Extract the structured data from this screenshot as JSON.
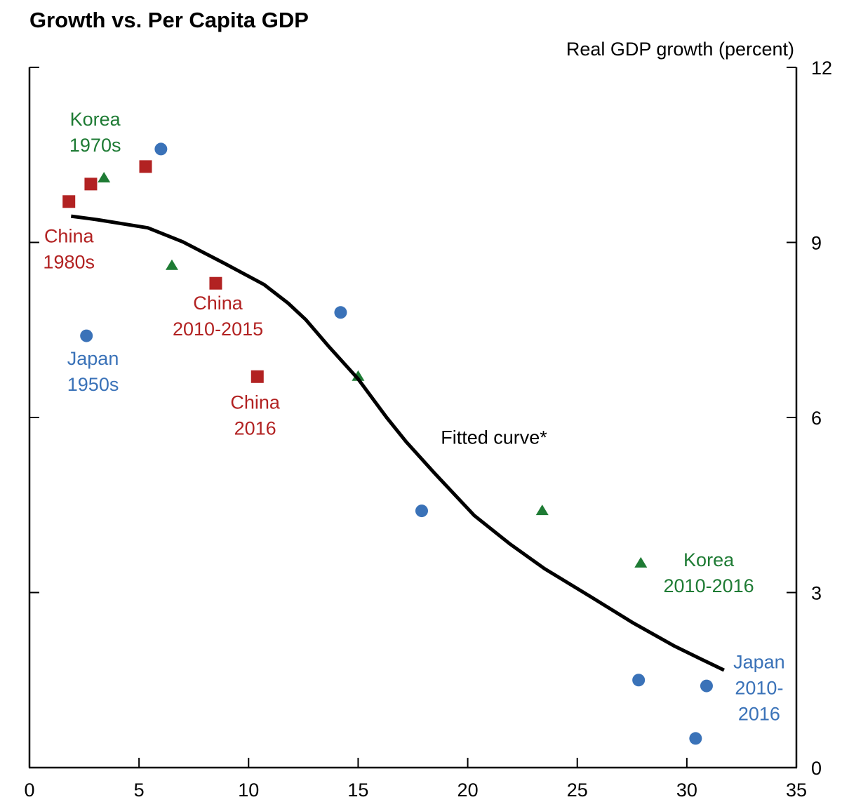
{
  "chart_data": {
    "type": "scatter",
    "title": "Growth vs. Per Capita GDP",
    "xlabel": "",
    "ylabel": "Real GDP growth (percent)",
    "y_axis_side": "right",
    "xlim": [
      0,
      35
    ],
    "ylim": [
      0,
      12
    ],
    "x_ticks": [
      "0",
      "5",
      "10",
      "15",
      "20",
      "25",
      "30",
      "35"
    ],
    "x_tick_values": [
      0,
      5,
      10,
      15,
      20,
      25,
      30,
      35
    ],
    "y_ticks": [
      "0",
      "3",
      "6",
      "9",
      "12"
    ],
    "y_tick_values": [
      0,
      3,
      6,
      9,
      12
    ],
    "grid": false,
    "series": [
      {
        "name": "China",
        "marker": "square",
        "color": "#b22222",
        "points": [
          {
            "x": 1.8,
            "y": 9.7
          },
          {
            "x": 2.8,
            "y": 10.0
          },
          {
            "x": 5.3,
            "y": 10.3
          },
          {
            "x": 8.5,
            "y": 8.3
          },
          {
            "x": 10.4,
            "y": 6.7
          }
        ]
      },
      {
        "name": "Korea",
        "marker": "triangle",
        "color": "#1e7b34",
        "points": [
          {
            "x": 3.4,
            "y": 10.1
          },
          {
            "x": 6.5,
            "y": 8.6
          },
          {
            "x": 15.0,
            "y": 6.7
          },
          {
            "x": 23.4,
            "y": 4.4
          },
          {
            "x": 27.9,
            "y": 3.5
          }
        ]
      },
      {
        "name": "Japan",
        "marker": "circle",
        "color": "#3a72b8",
        "points": [
          {
            "x": 2.6,
            "y": 7.4
          },
          {
            "x": 6.0,
            "y": 10.6
          },
          {
            "x": 14.2,
            "y": 7.8
          },
          {
            "x": 17.9,
            "y": 4.4
          },
          {
            "x": 27.8,
            "y": 1.5
          },
          {
            "x": 30.9,
            "y": 1.4
          },
          {
            "x": 30.4,
            "y": 0.5
          }
        ]
      },
      {
        "name": "Fitted curve*",
        "type": "line",
        "color": "#000000",
        "points": [
          {
            "x": 1.9,
            "y": 9.45
          },
          {
            "x": 3.1,
            "y": 9.39
          },
          {
            "x": 5.4,
            "y": 9.25
          },
          {
            "x": 7.0,
            "y": 9.01
          },
          {
            "x": 8.9,
            "y": 8.64
          },
          {
            "x": 10.7,
            "y": 8.28
          },
          {
            "x": 11.8,
            "y": 7.96
          },
          {
            "x": 12.6,
            "y": 7.68
          },
          {
            "x": 13.7,
            "y": 7.2
          },
          {
            "x": 15.0,
            "y": 6.66
          },
          {
            "x": 16.3,
            "y": 6.0
          },
          {
            "x": 17.2,
            "y": 5.58
          },
          {
            "x": 18.5,
            "y": 5.04
          },
          {
            "x": 20.3,
            "y": 4.32
          },
          {
            "x": 21.9,
            "y": 3.84
          },
          {
            "x": 23.5,
            "y": 3.41
          },
          {
            "x": 25.6,
            "y": 2.93
          },
          {
            "x": 27.5,
            "y": 2.49
          },
          {
            "x": 29.4,
            "y": 2.09
          },
          {
            "x": 30.7,
            "y": 1.85
          },
          {
            "x": 31.7,
            "y": 1.67
          }
        ]
      }
    ],
    "annotations": [
      {
        "id": "korea-1970s",
        "lines": [
          "Korea",
          "1970s"
        ],
        "color": "#1e7b34",
        "x": 3.0,
        "y": 11.0
      },
      {
        "id": "china-1980s",
        "lines": [
          "China",
          "1980s"
        ],
        "color": "#b22222",
        "x": 1.8,
        "y": 9.0
      },
      {
        "id": "japan-1950s",
        "lines": [
          "Japan",
          "1950s"
        ],
        "color": "#3a72b8",
        "x": 2.9,
        "y": 6.9
      },
      {
        "id": "china-2010-2015",
        "lines": [
          "China",
          "2010-2015"
        ],
        "color": "#b22222",
        "x": 8.6,
        "y": 7.85
      },
      {
        "id": "china-2016",
        "lines": [
          "China",
          "2016"
        ],
        "color": "#b22222",
        "x": 10.3,
        "y": 6.15
      },
      {
        "id": "fitted-curve-label",
        "lines": [
          "Fitted curve*"
        ],
        "color": "#000000",
        "x": 21.2,
        "y": 5.55
      },
      {
        "id": "korea-2010-2016",
        "lines": [
          "Korea",
          "2010-2016"
        ],
        "color": "#1e7b34",
        "x": 31.0,
        "y": 3.45
      },
      {
        "id": "japan-2010-2016",
        "lines": [
          "Japan",
          "2010-",
          "2016"
        ],
        "color": "#3a72b8",
        "x": 33.3,
        "y": 1.7
      }
    ]
  }
}
